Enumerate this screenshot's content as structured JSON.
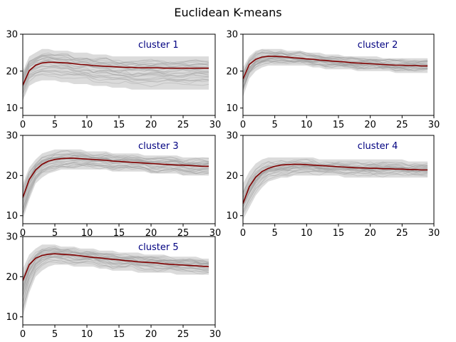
{
  "figure": {
    "title": "Euclidean K-means"
  },
  "chart_data": {
    "type": "line",
    "title": "Euclidean K-means",
    "xlabel": "",
    "ylabel": "",
    "xlim": [
      0,
      30
    ],
    "ylim": [
      8,
      30
    ],
    "xticks": [
      0,
      5,
      10,
      15,
      20,
      25,
      30
    ],
    "yticks": [
      10,
      20,
      30
    ],
    "grid": false,
    "member_color": "#b0b0b0",
    "centroid_color": "#800000",
    "label_color": "#000080",
    "x": [
      0,
      1,
      2,
      3,
      4,
      5,
      6,
      7,
      8,
      9,
      10,
      11,
      12,
      13,
      14,
      15,
      16,
      17,
      18,
      19,
      20,
      21,
      22,
      23,
      24,
      25,
      26,
      27,
      28,
      29
    ],
    "panels": [
      {
        "label": "cluster 1",
        "centroid": [
          16.2,
          20.1,
          21.6,
          22.2,
          22.4,
          22.4,
          22.3,
          22.2,
          22.0,
          21.8,
          21.7,
          21.5,
          21.4,
          21.3,
          21.2,
          21.1,
          21.0,
          21.0,
          20.9,
          20.9,
          20.9,
          20.9,
          20.8,
          20.8,
          20.8,
          20.8,
          20.8,
          20.8,
          20.8,
          20.8
        ],
        "band": [
          [
            12,
            20
          ],
          [
            16,
            24
          ],
          [
            17,
            25
          ],
          [
            17.5,
            26
          ],
          [
            17.5,
            26
          ],
          [
            17.5,
            25.5
          ],
          [
            17,
            25.5
          ],
          [
            17,
            25.5
          ],
          [
            16.5,
            25
          ],
          [
            16.5,
            25
          ],
          [
            16.5,
            25
          ],
          [
            16,
            24.5
          ],
          [
            16,
            24.5
          ],
          [
            16,
            24.5
          ],
          [
            15.5,
            24
          ],
          [
            15.5,
            24
          ],
          [
            15.5,
            24
          ],
          [
            15,
            24
          ],
          [
            15,
            24
          ],
          [
            15,
            24
          ],
          [
            15,
            24
          ],
          [
            15,
            24
          ],
          [
            15,
            24
          ],
          [
            15,
            24
          ],
          [
            15,
            24
          ],
          [
            15,
            24
          ],
          [
            15,
            24
          ],
          [
            15,
            24
          ],
          [
            15,
            24
          ],
          [
            15,
            24
          ]
        ]
      },
      {
        "label": "cluster 2",
        "centroid": [
          17.8,
          21.8,
          23.2,
          23.8,
          24.0,
          24.0,
          23.9,
          23.8,
          23.6,
          23.5,
          23.3,
          23.2,
          23.0,
          22.9,
          22.7,
          22.6,
          22.5,
          22.3,
          22.2,
          22.1,
          22.0,
          21.9,
          21.8,
          21.7,
          21.6,
          21.6,
          21.5,
          21.5,
          21.4,
          21.4
        ],
        "band": [
          [
            13,
            21
          ],
          [
            18,
            24
          ],
          [
            20,
            25.5
          ],
          [
            21,
            26
          ],
          [
            21.5,
            26
          ],
          [
            21.5,
            26
          ],
          [
            21.5,
            26
          ],
          [
            21.5,
            25.5
          ],
          [
            21.5,
            25.5
          ],
          [
            21.5,
            25.5
          ],
          [
            21.5,
            25
          ],
          [
            21,
            25
          ],
          [
            21,
            25
          ],
          [
            20.5,
            24.5
          ],
          [
            20.5,
            24.5
          ],
          [
            20.5,
            24.5
          ],
          [
            20.5,
            24
          ],
          [
            20.5,
            24
          ],
          [
            20,
            24
          ],
          [
            20,
            24
          ],
          [
            20,
            24
          ],
          [
            20,
            24
          ],
          [
            20,
            23.5
          ],
          [
            20,
            23.5
          ],
          [
            19.5,
            23.5
          ],
          [
            19.5,
            23.5
          ],
          [
            19.5,
            23.5
          ],
          [
            19.5,
            23.5
          ],
          [
            19.5,
            23.5
          ],
          [
            19.5,
            23.5
          ]
        ]
      },
      {
        "label": "cluster 3",
        "centroid": [
          14.5,
          19.0,
          21.4,
          22.8,
          23.6,
          24.0,
          24.2,
          24.3,
          24.3,
          24.2,
          24.1,
          24.0,
          23.9,
          23.8,
          23.6,
          23.5,
          23.4,
          23.3,
          23.2,
          23.1,
          23.0,
          22.9,
          22.8,
          22.7,
          22.6,
          22.6,
          22.5,
          22.4,
          22.3,
          22.3
        ],
        "band": [
          [
            9,
            18
          ],
          [
            14,
            22
          ],
          [
            18,
            24
          ],
          [
            19.5,
            25.5
          ],
          [
            20.5,
            26
          ],
          [
            21,
            26.5
          ],
          [
            21.5,
            26.5
          ],
          [
            21.5,
            26.5
          ],
          [
            21.5,
            26.5
          ],
          [
            21.5,
            26.5
          ],
          [
            21.5,
            26
          ],
          [
            21.5,
            26
          ],
          [
            21.5,
            26
          ],
          [
            21.5,
            26
          ],
          [
            21,
            25.5
          ],
          [
            21,
            25.5
          ],
          [
            21,
            25.5
          ],
          [
            21,
            25.5
          ],
          [
            21,
            25.5
          ],
          [
            21,
            25
          ],
          [
            20.5,
            25
          ],
          [
            20.5,
            25
          ],
          [
            20.5,
            25
          ],
          [
            20.5,
            25
          ],
          [
            20.5,
            25
          ],
          [
            20,
            24.5
          ],
          [
            20,
            24.5
          ],
          [
            20,
            24.5
          ],
          [
            20,
            24.5
          ],
          [
            20,
            24.5
          ]
        ]
      },
      {
        "label": "cluster 4",
        "centroid": [
          13.0,
          17.2,
          19.6,
          21.0,
          21.8,
          22.3,
          22.6,
          22.7,
          22.8,
          22.8,
          22.7,
          22.6,
          22.5,
          22.4,
          22.3,
          22.2,
          22.1,
          22.0,
          21.9,
          21.9,
          21.8,
          21.8,
          21.7,
          21.7,
          21.6,
          21.6,
          21.5,
          21.5,
          21.4,
          21.4
        ],
        "band": [
          [
            9,
            18
          ],
          [
            12,
            21
          ],
          [
            15,
            23
          ],
          [
            17,
            24
          ],
          [
            18.5,
            24.5
          ],
          [
            19,
            24.5
          ],
          [
            19.5,
            24.5
          ],
          [
            19.5,
            24.5
          ],
          [
            20,
            24.5
          ],
          [
            20,
            24.5
          ],
          [
            20,
            24.5
          ],
          [
            20,
            24.5
          ],
          [
            20,
            24
          ],
          [
            20,
            24
          ],
          [
            20,
            24
          ],
          [
            20,
            24
          ],
          [
            19.5,
            24
          ],
          [
            19.5,
            24
          ],
          [
            19.5,
            24
          ],
          [
            19.5,
            24
          ],
          [
            19.5,
            24
          ],
          [
            19.5,
            24
          ],
          [
            19.5,
            24
          ],
          [
            19.5,
            24
          ],
          [
            19.5,
            24
          ],
          [
            19.5,
            24
          ],
          [
            19.5,
            23.5
          ],
          [
            19.5,
            23.5
          ],
          [
            19.5,
            23.5
          ],
          [
            19.5,
            23.5
          ]
        ]
      },
      {
        "label": "cluster 5",
        "centroid": [
          19.0,
          23.0,
          24.6,
          25.3,
          25.6,
          25.7,
          25.6,
          25.5,
          25.4,
          25.2,
          25.0,
          24.8,
          24.7,
          24.5,
          24.3,
          24.2,
          24.0,
          23.9,
          23.7,
          23.6,
          23.5,
          23.4,
          23.2,
          23.1,
          23.0,
          22.9,
          22.8,
          22.7,
          22.6,
          22.5
        ],
        "band": [
          [
            10,
            22
          ],
          [
            16,
            25.5
          ],
          [
            20,
            27
          ],
          [
            21.5,
            28
          ],
          [
            22.5,
            28
          ],
          [
            23,
            28
          ],
          [
            23,
            27.5
          ],
          [
            23,
            27.5
          ],
          [
            22.5,
            27.5
          ],
          [
            22.5,
            27
          ],
          [
            22.5,
            27
          ],
          [
            22.5,
            27
          ],
          [
            22,
            26.5
          ],
          [
            22,
            26.5
          ],
          [
            21.5,
            26.5
          ],
          [
            21.5,
            26
          ],
          [
            21.5,
            26
          ],
          [
            21.5,
            26
          ],
          [
            21,
            26
          ],
          [
            21,
            25.5
          ],
          [
            21,
            25.5
          ],
          [
            21,
            25.5
          ],
          [
            21,
            25.5
          ],
          [
            21,
            25
          ],
          [
            20.5,
            25
          ],
          [
            20.5,
            25
          ],
          [
            20.5,
            25
          ],
          [
            20.5,
            25
          ],
          [
            20.5,
            24.5
          ],
          [
            20.5,
            24.5
          ]
        ]
      }
    ]
  }
}
